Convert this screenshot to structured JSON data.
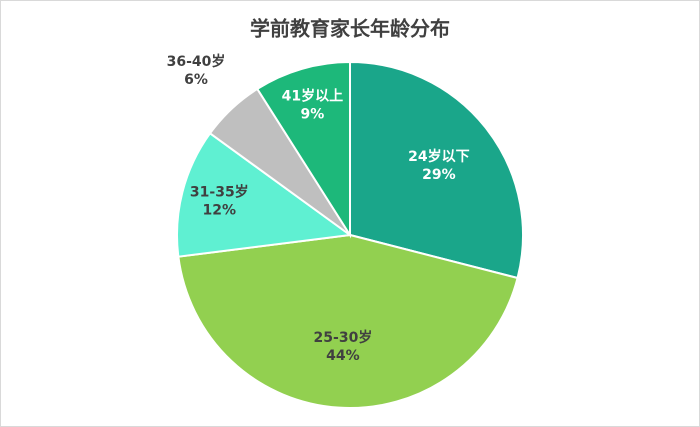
{
  "chart_data": {
    "type": "pie",
    "title": "学前教育家长年龄分布",
    "categories": [
      "24岁以下",
      "25-30岁",
      "31-35岁",
      "36-40岁",
      "41岁以上"
    ],
    "values": [
      29,
      44,
      12,
      6,
      9
    ],
    "value_labels": [
      "29%",
      "44%",
      "12%",
      "6%",
      "9%"
    ],
    "colors": [
      "#1aa68a",
      "#92d050",
      "#5ff0d2",
      "#bfbfbf",
      "#1db87a"
    ]
  }
}
